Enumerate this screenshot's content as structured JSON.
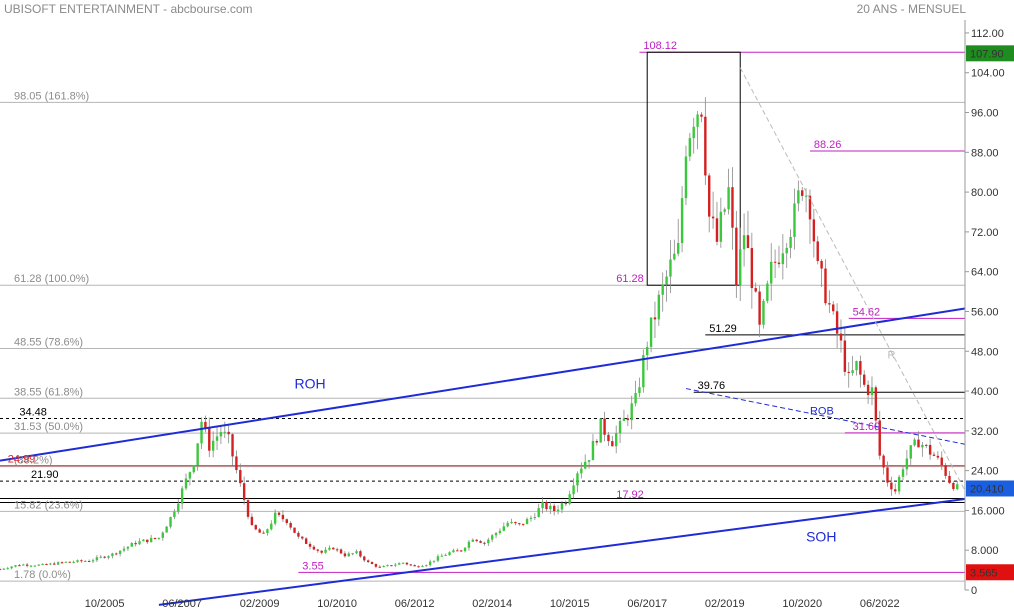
{
  "header": {
    "title": "UBISOFT ENTERTAINMENT - abcbourse.com",
    "period": "20 ANS - MENSUEL"
  },
  "chart_data": {
    "type": "candlestick",
    "y_axis": {
      "ticks": [
        0,
        8.0,
        16.0,
        24.0,
        32.0,
        40.0,
        48.0,
        56.0,
        64.0,
        72.0,
        80.0,
        88.0,
        96.0,
        104.0,
        112.0
      ],
      "tick_labels": [
        "0",
        "8.000",
        "16.000",
        "24.00",
        "32.00",
        "40.00",
        "48.00",
        "56.00",
        "64.00",
        "72.00",
        "80.00",
        "88.00",
        "96.00",
        "104.00",
        "112.00"
      ],
      "range": [
        0,
        114.6
      ]
    },
    "x_axis": {
      "tick_labels": [
        "10/2005",
        "06/2007",
        "02/2009",
        "10/2010",
        "06/2012",
        "02/2014",
        "10/2015",
        "06/2017",
        "02/2019",
        "10/2020",
        "06/2022"
      ],
      "range": [
        "2003-07",
        "2024-04"
      ]
    },
    "price_badges": [
      {
        "value": "107.90",
        "price": 107.9,
        "color": "#1e8c1e"
      },
      {
        "value": "20.410",
        "price": 20.41,
        "color": "#1a5fe0"
      },
      {
        "value": "3.565",
        "price": 3.565,
        "color": "#e01010"
      }
    ],
    "fibonacci_levels": [
      {
        "label": "98.05  (161.8%)",
        "price": 98.05
      },
      {
        "label": "61.28  (100.0%)",
        "price": 61.28
      },
      {
        "label": "48.55  (78.6%)",
        "price": 48.55
      },
      {
        "label": "38.55  (61.8%)",
        "price": 38.55
      },
      {
        "label": "31.53  (50.0%)",
        "price": 31.53
      },
      {
        "label": "(38.2%)",
        "price": 24.8
      },
      {
        "label": "15.82  (23.6%)",
        "price": 15.82
      },
      {
        "label": "1.78  (0.0%)",
        "price": 1.78
      }
    ],
    "price_levels": [
      {
        "label": "108.12",
        "price": 108.12,
        "color": "#c020c0",
        "x_from": "2017-04",
        "x_to": "2024-04",
        "label_at": "2017-05"
      },
      {
        "label": "88.26",
        "price": 88.26,
        "color": "#c020c0",
        "x_from": "2020-12",
        "x_to": "2024-04",
        "label_at": "2021-01"
      },
      {
        "label": "61.28",
        "price": 61.28,
        "color": "#c020c0",
        "x_from": null,
        "x_to": null,
        "label_at": "2016-10"
      },
      {
        "label": "54.62",
        "price": 54.62,
        "color": "#c020c0",
        "x_from": "2021-10",
        "x_to": "2024-04",
        "label_at": "2021-11"
      },
      {
        "label": "51.29",
        "price": 51.29,
        "color": "#000000",
        "x_from": "2018-09",
        "x_to": "2024-04",
        "label_at": "2018-10"
      },
      {
        "label": "39.76",
        "price": 39.76,
        "color": "#000000",
        "x_from": "2018-06",
        "x_to": "2024-04",
        "label_at": "2018-07"
      },
      {
        "label": "34.48",
        "price": 34.48,
        "color": "#000000",
        "x_from": "2003-07",
        "x_to": "2024-04",
        "label_at": "2003-12",
        "dashed": true
      },
      {
        "label": "31.60",
        "price": 31.6,
        "color": "#c020c0",
        "x_from": "2021-09",
        "x_to": "2024-04",
        "label_at": "2021-11"
      },
      {
        "label": "24.99",
        "price": 24.99,
        "color": "#e02020",
        "x_from": "2003-07",
        "x_to": "2024-04",
        "label_at": "2003-09"
      },
      {
        "label": "21.90",
        "price": 21.9,
        "color": "#000000",
        "x_from": "2003-07",
        "x_to": "2024-04",
        "label_at": "2004-03",
        "dashed": true
      },
      {
        "label": "17.92",
        "price": 17.92,
        "color": "#c020c0",
        "x_from": null,
        "x_to": null,
        "label_at": "2016-10"
      },
      {
        "label": "3.55",
        "price": 3.55,
        "color": "#c020c0",
        "x_from": "2009-12",
        "x_to": "2024-04",
        "label_at": "2010-01"
      }
    ],
    "trendlines": [
      {
        "label": "ROH",
        "from": {
          "date": "2003-07",
          "price": 26.0
        },
        "to": {
          "date": "2024-04",
          "price": 56.6
        },
        "label_at": {
          "date": "2009-11",
          "price": 40.5
        },
        "color": "#1f2bd6"
      },
      {
        "label": "SOH",
        "from": {
          "date": "2006-12",
          "price": -3.0
        },
        "to": {
          "date": "2024-04",
          "price": 18.3
        },
        "label_at": {
          "date": "2020-11",
          "price": 9.8
        },
        "color": "#1f2bd6"
      },
      {
        "label": "ROB",
        "from": {
          "date": "2018-04",
          "price": 40.5
        },
        "to": {
          "date": "2024-04",
          "price": 29.3
        },
        "label_at": {
          "date": "2020-12",
          "price": 35.3
        },
        "color": "#1f2bd6",
        "dashed": true
      },
      {
        "label": "R",
        "from": {
          "date": "2019-06",
          "price": 105.0
        },
        "to": {
          "date": "2024-04",
          "price": 20.0
        },
        "label_at": {
          "date": "2022-08",
          "price": 46.5
        },
        "color": "#bbbbbb",
        "dashed": true
      }
    ],
    "monthly_close": [
      [
        2003,
        7,
        4.2
      ],
      [
        2003,
        12,
        5.1
      ],
      [
        2004,
        6,
        5.0
      ],
      [
        2004,
        12,
        5.6
      ],
      [
        2005,
        6,
        5.9
      ],
      [
        2005,
        12,
        7.2
      ],
      [
        2006,
        6,
        9.5
      ],
      [
        2006,
        12,
        10.5
      ],
      [
        2007,
        3,
        14.5
      ],
      [
        2007,
        6,
        20.0
      ],
      [
        2007,
        9,
        26.0
      ],
      [
        2007,
        11,
        34.0
      ],
      [
        2008,
        1,
        29.0
      ],
      [
        2008,
        4,
        32.0
      ],
      [
        2008,
        6,
        30.0
      ],
      [
        2008,
        9,
        21.0
      ],
      [
        2008,
        12,
        12.5
      ],
      [
        2009,
        3,
        11.0
      ],
      [
        2009,
        6,
        15.0
      ],
      [
        2009,
        9,
        14.0
      ],
      [
        2009,
        12,
        10.5
      ],
      [
        2010,
        3,
        9.0
      ],
      [
        2010,
        6,
        7.5
      ],
      [
        2010,
        9,
        8.5
      ],
      [
        2010,
        12,
        7.0
      ],
      [
        2011,
        3,
        7.5
      ],
      [
        2011,
        6,
        5.5
      ],
      [
        2011,
        9,
        4.5
      ],
      [
        2011,
        12,
        5.0
      ],
      [
        2012,
        3,
        5.5
      ],
      [
        2012,
        6,
        4.7
      ],
      [
        2012,
        9,
        5.2
      ],
      [
        2012,
        12,
        6.5
      ],
      [
        2013,
        3,
        7.5
      ],
      [
        2013,
        6,
        8.0
      ],
      [
        2013,
        9,
        10.5
      ],
      [
        2013,
        12,
        9.5
      ],
      [
        2014,
        3,
        11.5
      ],
      [
        2014,
        6,
        13.5
      ],
      [
        2014,
        9,
        13.0
      ],
      [
        2014,
        12,
        14.5
      ],
      [
        2015,
        3,
        17.0
      ],
      [
        2015,
        6,
        16.0
      ],
      [
        2015,
        9,
        18.0
      ],
      [
        2015,
        12,
        24.0
      ],
      [
        2016,
        3,
        27.0
      ],
      [
        2016,
        6,
        33.0
      ],
      [
        2016,
        9,
        30.0
      ],
      [
        2016,
        12,
        34.0
      ],
      [
        2017,
        3,
        38.0
      ],
      [
        2017,
        6,
        50.0
      ],
      [
        2017,
        9,
        58.0
      ],
      [
        2017,
        12,
        65.0
      ],
      [
        2018,
        2,
        68.0
      ],
      [
        2018,
        4,
        90.0
      ],
      [
        2018,
        6,
        96.0
      ],
      [
        2018,
        8,
        98.0
      ],
      [
        2018,
        10,
        75.0
      ],
      [
        2018,
        12,
        70.0
      ],
      [
        2019,
        3,
        80.0
      ],
      [
        2019,
        5,
        62.0
      ],
      [
        2019,
        7,
        72.0
      ],
      [
        2019,
        9,
        63.0
      ],
      [
        2019,
        11,
        52.0
      ],
      [
        2020,
        2,
        64.0
      ],
      [
        2020,
        4,
        68.0
      ],
      [
        2020,
        6,
        72.0
      ],
      [
        2020,
        8,
        75.0
      ],
      [
        2020,
        10,
        82.0
      ],
      [
        2020,
        12,
        78.0
      ],
      [
        2021,
        2,
        64.0
      ],
      [
        2021,
        4,
        60.0
      ],
      [
        2021,
        6,
        54.0
      ],
      [
        2021,
        8,
        49.0
      ],
      [
        2021,
        10,
        42.0
      ],
      [
        2021,
        12,
        45.0
      ],
      [
        2022,
        2,
        41.0
      ],
      [
        2022,
        4,
        40.0
      ],
      [
        2022,
        6,
        27.0
      ],
      [
        2022,
        8,
        22.0
      ],
      [
        2022,
        10,
        20.0
      ],
      [
        2022,
        12,
        25.0
      ],
      [
        2023,
        2,
        28.0
      ],
      [
        2023,
        4,
        30.0
      ],
      [
        2023,
        6,
        28.5
      ],
      [
        2023,
        8,
        27.0
      ],
      [
        2023,
        10,
        25.0
      ],
      [
        2023,
        12,
        22.0
      ],
      [
        2024,
        2,
        20.41
      ]
    ]
  }
}
